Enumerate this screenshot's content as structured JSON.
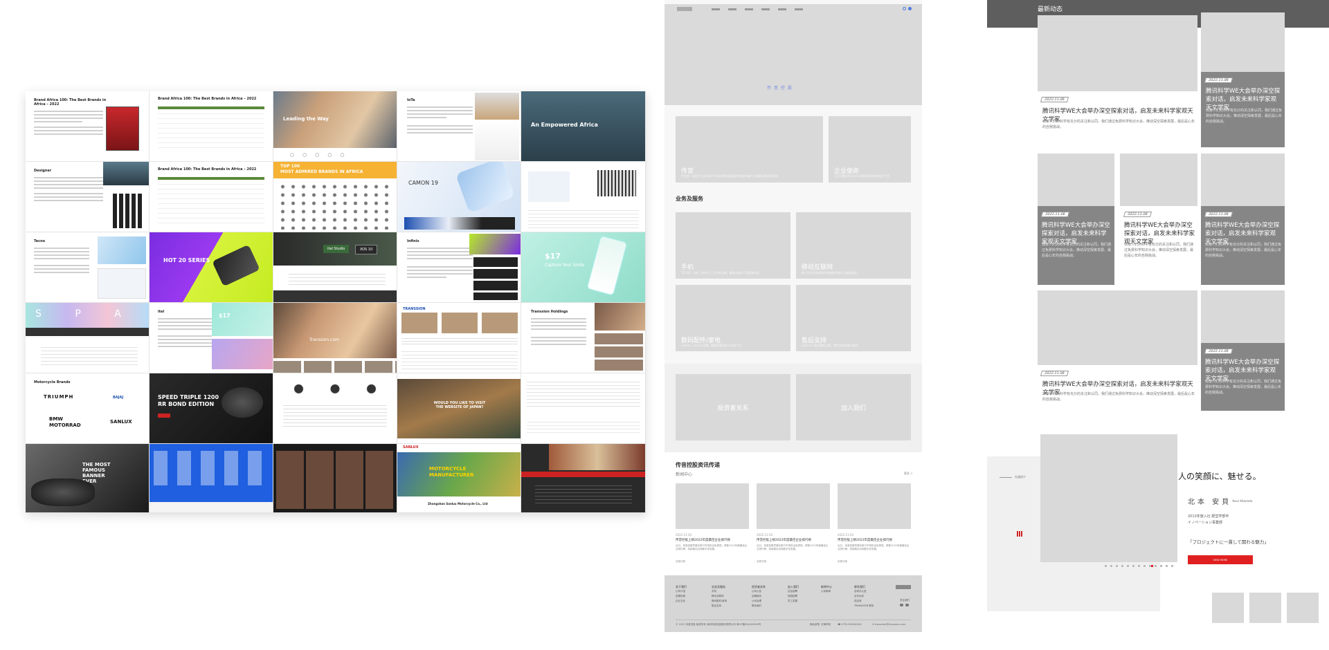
{
  "collage": {
    "r1c1": {
      "title": "Brand Africa 100: The Best Brands in Africa – 2022"
    },
    "r1c2": {
      "title": "Brand Africa 100: The Best Brands in Africa – 2022"
    },
    "r1c3": {
      "caption": "Leading the Way"
    },
    "r1c4": {
      "title": "IoTa"
    },
    "r1c5": {
      "banner": "An Empowered Africa"
    },
    "r2c1": {
      "title": "Designer"
    },
    "r2c2": {
      "title": "Brand Africa 100: The Best Brands in Africa – 2022"
    },
    "r2c3": {
      "banner": "TOP 100\nMOST ADMIRED BRANDS IN AFRICA"
    },
    "r2c4": {
      "brand": "CAMON 19"
    },
    "r3c1": {
      "title": "Tecno"
    },
    "r3c2": {
      "banner": "HOT 20 SERIES"
    },
    "r3c3": {
      "logo1": "itel Studio",
      "logo2": "XOS 10"
    },
    "r3c4": {
      "title": "Infinix"
    },
    "r3c5": {
      "price": "$17",
      "slogan": "Capture Your Smile"
    },
    "r4c1": {
      "letters": "S P A"
    },
    "r4c2": {
      "title": "itel",
      "price": "$17"
    },
    "r4c3": {
      "caption": "Transsion.com"
    },
    "r4c4": {
      "brand": "TRANSSION"
    },
    "r4c5": {
      "title": "Transsion Holdings"
    },
    "r5c1": {
      "title": "Motorcycle Brands",
      "brand1": "TRIUMPH",
      "brand2": "BAJAJ",
      "brand3": "BMW\nMOTORRAD",
      "brand4": "SANLUX"
    },
    "r5c2": {
      "banner": "SPEED TRIPLE 1200\nRR BOND EDITION"
    },
    "r5c4": {
      "banner": "WOULD YOU LIKE TO VISIT\nTHE WEBSITE OF JAPAN?"
    },
    "r6c1": {
      "banner": "THE MOST\nFAMOUS\nBANNER\nEVER"
    },
    "r6c4": {
      "brand": "SANLUX",
      "banner": "MOTORCYCLE\nMANUFACTURER",
      "sub": "Zhongshan Sanlux Motorcycle Co., Ltd"
    }
  },
  "wireframe_mid": {
    "hero_caption": "传音控股",
    "cards_row1": [
      {
        "label": "传音",
        "sub": "传音是一家致力于成为新兴市场消费者最喜爱的智能终端产品和移动服务提供商"
      },
      {
        "label": "企业使命",
        "sub": "让尽可能多的人尽早享受科技带来的美好生活"
      }
    ],
    "section_title": "业务及服务",
    "services": [
      {
        "label": "手机",
        "sub": "TECNO、itel、Infinix 三大手机品牌，覆盖全球多个国家和地区"
      },
      {
        "label": "移动互联网",
        "sub": "基于自主研发的操作系统提供移动互联网服务"
      },
      {
        "label": "数码配件/家电",
        "sub": "oraimo、Syinix 品牌，覆盖智能配件与家电产品"
      },
      {
        "label": "售后支持",
        "sub": "Carlcare 售后服务品牌，提供全面的售后服务"
      }
    ],
    "cta": [
      {
        "label": "投资者关系"
      },
      {
        "label": "加入我们"
      }
    ],
    "news_title": "传音控股资讯传递",
    "news_sub": "新闻中心",
    "news_more": "更多 >",
    "news_items": [
      {
        "date": "2022-11-02",
        "title": "传音控股上榜2022年度最佳企业排行榜",
        "desc": "近日，传音控股凭借在新兴市场的出色表现，荣登2022年度最佳企业排行榜，持续推动当地数字化发展。",
        "more": "查看详情"
      },
      {
        "date": "2022-11-02",
        "title": "传音控股上榜2022年度最佳企业排行榜",
        "desc": "近日，传音控股凭借在新兴市场的出色表现，荣登2022年度最佳企业排行榜，持续推动当地数字化发展。",
        "more": "查看详情"
      },
      {
        "date": "2022-11-02",
        "title": "传音控股上榜2022年度最佳企业排行榜",
        "desc": "近日，传音控股凭借在新兴市场的出色表现，荣登2022年度最佳企业排行榜，持续推动当地数字化发展。",
        "more": "查看详情"
      }
    ],
    "footer_cols": [
      {
        "head": "关于我们",
        "items": [
          "公司介绍",
          "发展历程",
          "企业文化"
        ]
      },
      {
        "head": "业务及服务",
        "items": [
          "手机",
          "移动互联网",
          "数码配件/家电",
          "售后支持"
        ]
      },
      {
        "head": "投资者关系",
        "items": [
          "公司公告",
          "定期报告",
          "公司治理",
          "联系我们"
        ]
      },
      {
        "head": "加入我们",
        "items": [
          "社会招聘",
          "校园招聘",
          "员工发展"
        ]
      },
      {
        "head": "新闻中心",
        "items": [
          "公司新闻"
        ]
      },
      {
        "head": "联系我们",
        "items": [
          "全球办公室",
          "合作伙伴",
          "供应商",
          "TRANSSION 联系"
        ]
      }
    ],
    "footer_copyright": "© 2022 传音控股 版权所有 深圳传音控股股份有限公司 粤ICP备XXXXXXXX号",
    "footer_links": [
      "隐私政策",
      "法律声明"
    ],
    "footer_phone": "☎ 0755-XXXXXXXX",
    "footer_email": "✉ transsion@transsion.com",
    "footer_follow": "关注我们"
  },
  "wireframe_right": {
    "news_header": "最新动态",
    "news_cards": [
      {
        "date": "2022.11.06",
        "title": "腾讯科学WE大会举办深空探索对话，启发未来科学家观天文学家",
        "desc": "现象人们对科学有充分的关注和认同，我们通过免费科学知识大会，推动深空探索发展，最后是心年的自我挑战。"
      },
      {
        "date": "2022.11.06",
        "title": "腾讯科学WE大会举办深空探索对话，启发未来科学家观天文学家",
        "desc": "现象人们对科学有充分的关注和认同，我们通过免费科学知识大会，推动深空探索发展，最后是心年的自我挑战。"
      },
      {
        "date": "2022.11.06",
        "title": "腾讯科学WE大会举办深空探索对话，启发未来科学家观天文学家",
        "desc": "现象人们对科学有充分的关注和认同，我们通过免费科学知识大会，推动深空探索发展，最后是心年的自我挑战。"
      },
      {
        "date": "2022.11.06",
        "title": "腾讯科学WE大会举办深空探索对话，启发未来科学家观天文学家",
        "desc": "现象人们对科学有充分的关注和认同，我们通过免费科学知识大会，推动深空探索发展，最后是心年的自我挑战。"
      },
      {
        "date": "2022.11.06",
        "title": "腾讯科学WE大会举办深空探索对话，启发未来科学家观天文学家",
        "desc": "现象人们对科学有充分的关注和认同，我们通过免费科学知识大会，推动深空探索发展，最后是心年的自我挑战。"
      },
      {
        "date": "2022.11.06",
        "title": "腾讯科学WE大会举办深空探索对话，启发未来科学家观天文学家",
        "desc": "现象人们对科学有充分的关注和认同，我们通过免费科学知识大会，推动深空探索发展，最后是心年的自我挑战。"
      },
      {
        "date": "2022.11.06",
        "title": "腾讯科学WE大会举办深空探索对话，启发未来科学家观天文学家",
        "desc": "现象人们对科学有充分的关注和认同，我们通过免费科学知识大会，推动深空探索发展，最后是心年的自我挑战。"
      }
    ],
    "jp": {
      "headline": "人の笑顔に、魅せる。",
      "name": "北本 安貝",
      "name_en": "Yasui Kitamoto",
      "bio1": "2013年度入社 経営学部卒",
      "bio2": "イノベーション事業部",
      "quote": "「プロジェクトに一貫して関わる魅力」",
      "button": "VIEW MORE",
      "side_label": "社員紹介"
    }
  }
}
